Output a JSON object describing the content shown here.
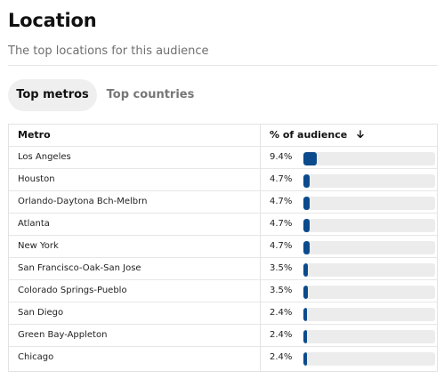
{
  "header": {
    "title": "Location",
    "subtitle": "The top locations for this audience"
  },
  "tabs": [
    {
      "label": "Top metros",
      "active": true
    },
    {
      "label": "Top countries",
      "active": false
    }
  ],
  "table": {
    "columns": {
      "metro": "Metro",
      "percent": "% of audience"
    },
    "sort": "descending",
    "rows": [
      {
        "metro": "Los Angeles",
        "percent": "9.4%",
        "value": 9.4
      },
      {
        "metro": "Houston",
        "percent": "4.7%",
        "value": 4.7
      },
      {
        "metro": "Orlando-Daytona Bch-Melbrn",
        "percent": "4.7%",
        "value": 4.7
      },
      {
        "metro": "Atlanta",
        "percent": "4.7%",
        "value": 4.7
      },
      {
        "metro": "New York",
        "percent": "4.7%",
        "value": 4.7
      },
      {
        "metro": "San Francisco-Oak-San Jose",
        "percent": "3.5%",
        "value": 3.5
      },
      {
        "metro": "Colorado Springs-Pueblo",
        "percent": "3.5%",
        "value": 3.5
      },
      {
        "metro": "San Diego",
        "percent": "2.4%",
        "value": 2.4
      },
      {
        "metro": "Green Bay-Appleton",
        "percent": "2.4%",
        "value": 2.4
      },
      {
        "metro": "Chicago",
        "percent": "2.4%",
        "value": 2.4
      }
    ]
  },
  "colors": {
    "bar_fill": "#0b4a8c",
    "bar_track": "#ececec",
    "active_tab_bg": "#efefef",
    "inactive_tab_text": "#767676"
  },
  "icons": {
    "sort": "arrow-down-icon"
  }
}
